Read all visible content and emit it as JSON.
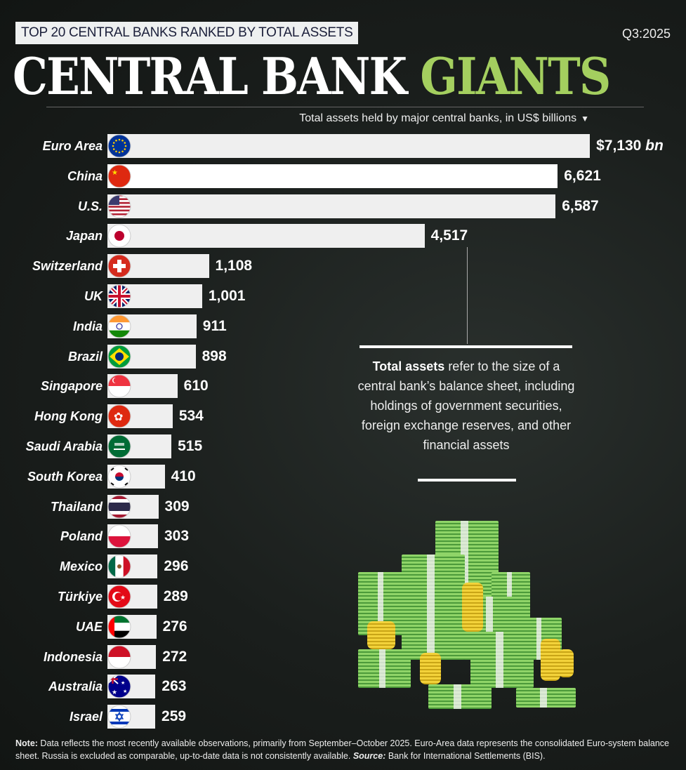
{
  "header": {
    "kicker": "TOP 20 CENTRAL BANKS RANKED BY TOTAL ASSETS",
    "period": "Q3:2025",
    "title_main": "CENTRAL BANK",
    "title_accent": "GIANTS",
    "subtitle": "Total assets held by major central banks, in US$ billions",
    "subtitle_icon": "triangle-down-icon"
  },
  "colors": {
    "accent": "#a4cf5f",
    "bar": "#efefef",
    "background": "#1a1e1c"
  },
  "chart_data": {
    "type": "bar",
    "orientation": "horizontal",
    "unit": "US$ billions",
    "first_value_suffix": "bn",
    "first_value_prefix": "$",
    "categories": [
      "Euro Area",
      "China",
      "U.S.",
      "Japan",
      "Switzerland",
      "UK",
      "India",
      "Brazil",
      "Singapore",
      "Hong Kong",
      "Saudi Arabia",
      "South Korea",
      "Thailand",
      "Poland",
      "Mexico",
      "Türkiye",
      "UAE",
      "Indonesia",
      "Australia",
      "Israel"
    ],
    "values": [
      7130,
      6621,
      6587,
      4517,
      1108,
      1001,
      911,
      898,
      610,
      534,
      515,
      410,
      309,
      303,
      296,
      289,
      276,
      272,
      263,
      259
    ],
    "labels": [
      "$7,130",
      "6,621",
      "6,587",
      "4,517",
      "1,108",
      "1,001",
      "911",
      "898",
      "610",
      "534",
      "515",
      "410",
      "309",
      "303",
      "296",
      "289",
      "276",
      "272",
      "263",
      "259"
    ],
    "flags": [
      "eu",
      "cn",
      "us",
      "jp",
      "ch",
      "gb",
      "in",
      "br",
      "sg",
      "hk",
      "sa",
      "kr",
      "th",
      "pl",
      "mx",
      "tr",
      "ae",
      "id",
      "au",
      "il"
    ]
  },
  "callout": {
    "bold": "Total assets",
    "text": " refer to the size of a central bank’s balance sheet, including holdings of government securities, foreign exchange reserves, and other financial assets"
  },
  "footer": {
    "note_label": "Note:",
    "note": " Data reflects the most recently available observations, primarily from September–October 2025. Euro-Area data represents the consolidated Euro-system balance sheet. Russia is excluded as comparable, up-to-date data is not consistently available. ",
    "source_label": "Source:",
    "source": " Bank for International Settlements (BIS)."
  }
}
